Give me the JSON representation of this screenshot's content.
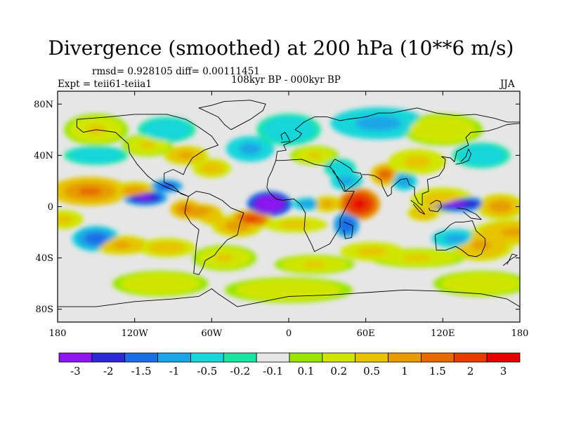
{
  "figure": {
    "title": "Divergence (smoothed) at 200 hPa (10**6 m/s)",
    "stats": "rmsd= 0.928105 diff= 0.00111451",
    "experiment": "Expt = teii61-teiia1",
    "period": "108kyr BP - 000kyr BP",
    "season": "JJA"
  },
  "map": {
    "projection": "cylindrical equidistant",
    "lon_range": [
      -180,
      180
    ],
    "lat_range": [
      -90,
      90
    ],
    "lat_tick_labels": [
      "80N",
      "40N",
      "0",
      "40S",
      "80S"
    ],
    "lon_tick_labels": [
      "180",
      "120W",
      "60W",
      "0",
      "60E",
      "120E",
      "180"
    ],
    "background_color": "#e6e6e6",
    "coastline_color": "#000000"
  },
  "colorbar": {
    "labels": [
      "-3",
      "-2",
      "-1.5",
      "-1",
      "-0.5",
      "-0.2",
      "-0.1",
      "0.1",
      "0.2",
      "0.5",
      "1",
      "1.5",
      "2",
      "3"
    ],
    "colors": [
      "#8b16f0",
      "#2a2ad6",
      "#1c6ee6",
      "#1aa6e6",
      "#18d6da",
      "#18e6a0",
      "#e6e6e6",
      "#9ae600",
      "#d0e600",
      "#e6c400",
      "#e69c00",
      "#e66a00",
      "#e63a00",
      "#e60000"
    ]
  },
  "chart_data": {
    "type": "heatmap",
    "title": "Divergence (smoothed) at 200 hPa (10**6 m/s)",
    "units": "10**6 m/s",
    "levels": [
      -3,
      -2,
      -1.5,
      -1,
      -0.5,
      -0.2,
      -0.1,
      0.1,
      0.2,
      0.5,
      1,
      1.5,
      2,
      3
    ],
    "features": [
      {
        "lon": -15,
        "lat": 0,
        "value": -3.0
      },
      {
        "lon": 55,
        "lat": 0,
        "value": 3.0
      },
      {
        "lon": 130,
        "lat": 0,
        "value": -2.2
      },
      {
        "lon": -115,
        "lat": 10,
        "value": -2.0
      },
      {
        "lon": -35,
        "lat": -12,
        "value": 2.2
      },
      {
        "lon": 80,
        "lat": 25,
        "value": 1.7
      },
      {
        "lon": -150,
        "lat": 5,
        "value": 1.5
      },
      {
        "lon": 40,
        "lat": -15,
        "value": -1.5
      }
    ]
  }
}
